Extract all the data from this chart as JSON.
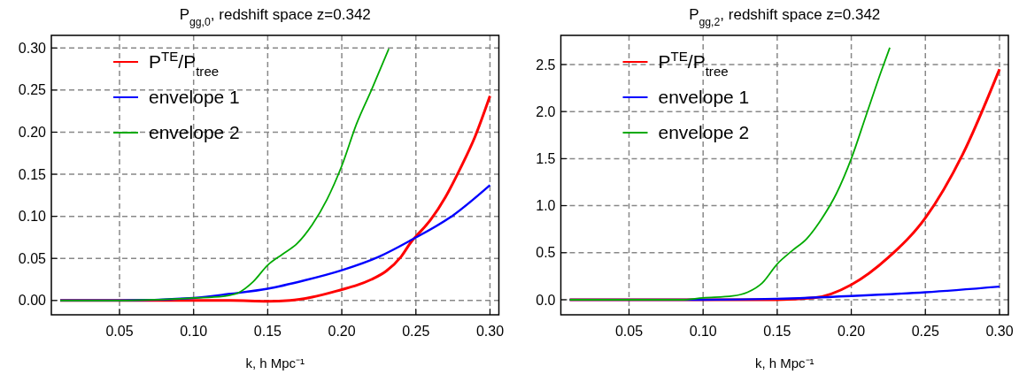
{
  "chart_data": [
    {
      "type": "line",
      "title": "P$_{gg,0}$, redshift space z=0.342",
      "xlabel": "k, h Mpc⁻¹",
      "xlim": [
        0.004,
        0.306
      ],
      "ylim": [
        -0.017,
        0.315
      ],
      "xticks": [
        0.05,
        {
          "value": 0.1,
          "label": "0.10"
        },
        0.15,
        {
          "value": 0.2,
          "label": "0.20"
        },
        0.25,
        {
          "value": 0.3,
          "label": "0.30"
        }
      ],
      "yticks": [
        {
          "value": 0,
          "label": "0.00"
        },
        0.05,
        {
          "value": 0.1,
          "label": "0.10"
        },
        0.15,
        {
          "value": 0.2,
          "label": "0.20"
        },
        0.25,
        {
          "value": 0.3,
          "label": "0.30"
        }
      ],
      "grid": true,
      "legend": "top left",
      "line_style": "solid",
      "marker": "none",
      "series": [
        {
          "name": "P$^{TE}$/P$_{tree}$",
          "color": "#ff0000",
          "x": [
            0.01,
            0.05,
            0.1,
            0.125,
            0.15,
            0.165,
            0.18,
            0.2,
            0.21,
            0.22,
            0.23,
            0.24,
            0.247,
            0.25,
            0.26,
            0.27,
            0.28,
            0.29,
            0.3
          ],
          "values": [
            0,
            0,
            0,
            0,
            -0.001,
            0,
            0.004,
            0.013,
            0.018,
            0.025,
            0.035,
            0.052,
            0.07,
            0.076,
            0.096,
            0.123,
            0.157,
            0.195,
            0.243
          ]
        },
        {
          "name": "envelope 1",
          "color": "#0000ff",
          "x": [
            0.01,
            0.05,
            0.1,
            0.125,
            0.15,
            0.175,
            0.2,
            0.225,
            0.247,
            0.275,
            0.3
          ],
          "values": [
            0,
            0,
            0.003,
            0.008,
            0.014,
            0.024,
            0.036,
            0.052,
            0.072,
            0.101,
            0.137
          ]
        },
        {
          "name": "envelope 2",
          "color": "#00aa00",
          "x": [
            0.01,
            0.05,
            0.1,
            0.12,
            0.13,
            0.14,
            0.15,
            0.16,
            0.17,
            0.18,
            0.19,
            0.2,
            0.21,
            0.22,
            0.2317
          ],
          "values": [
            0,
            0,
            0.003,
            0.005,
            0.009,
            0.022,
            0.042,
            0.055,
            0.068,
            0.09,
            0.12,
            0.16,
            0.21,
            0.25,
            0.299
          ]
        }
      ]
    },
    {
      "type": "line",
      "title": "P$_{gg,2}$, redshift space z=0.342",
      "xlabel": "k, h Mpc⁻¹",
      "xlim": [
        0.004,
        0.306
      ],
      "ylim": [
        -0.16,
        2.81
      ],
      "xticks": [
        0.05,
        {
          "value": 0.1,
          "label": "0.10"
        },
        0.15,
        {
          "value": 0.2,
          "label": "0.20"
        },
        0.25,
        {
          "value": 0.3,
          "label": "0.30"
        }
      ],
      "yticks": [
        {
          "value": 0,
          "label": "0.0"
        },
        0.5,
        {
          "value": 1,
          "label": "1.0"
        },
        1.5,
        {
          "value": 2,
          "label": "2.0"
        },
        2.5
      ],
      "grid": true,
      "legend": "top left",
      "line_style": "solid",
      "marker": "none",
      "series": [
        {
          "name": "P$^{TE}$/P$_{tree}$",
          "color": "#ff0000",
          "x": [
            0.01,
            0.1,
            0.15,
            0.175,
            0.2,
            0.225,
            0.25,
            0.275,
            0.3
          ],
          "values": [
            0,
            0,
            0,
            0.02,
            0.16,
            0.45,
            0.87,
            1.54,
            2.45
          ]
        },
        {
          "name": "envelope 1",
          "color": "#0000ff",
          "x": [
            0.01,
            0.1,
            0.15,
            0.2,
            0.25,
            0.3
          ],
          "values": [
            0,
            0,
            0.01,
            0.04,
            0.08,
            0.14
          ]
        },
        {
          "name": "envelope 2",
          "color": "#00aa00",
          "x": [
            0.01,
            0.085,
            0.1,
            0.12,
            0.13,
            0.14,
            0.15,
            0.16,
            0.17,
            0.18,
            0.19,
            0.2,
            0.21,
            0.22,
            0.226
          ],
          "values": [
            0,
            0,
            0.02,
            0.04,
            0.08,
            0.18,
            0.38,
            0.52,
            0.65,
            0.86,
            1.13,
            1.5,
            1.96,
            2.42,
            2.68
          ]
        }
      ]
    }
  ]
}
